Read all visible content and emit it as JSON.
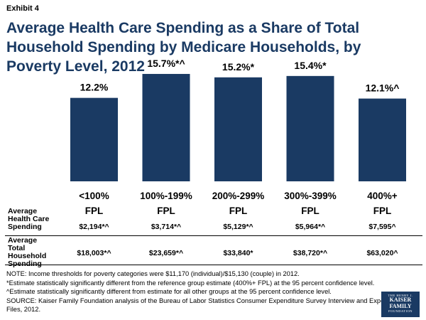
{
  "exhibit": "Exhibit 4",
  "title": "Average Health Care Spending as a Share of Total Household Spending by Medicare Households, by Poverty Level, 2012",
  "chart_data": {
    "type": "bar",
    "title": "Average Health Care Spending as a Share of Total Household Spending by Medicare Households, by Poverty Level, 2012",
    "categories": [
      [
        "<100%",
        "FPL"
      ],
      [
        "100%-199%",
        "FPL"
      ],
      [
        "200%-299%",
        "FPL"
      ],
      [
        "300%-399%",
        "FPL"
      ],
      [
        "400%+",
        "FPL"
      ]
    ],
    "values": [
      12.2,
      15.7,
      15.2,
      15.4,
      12.1
    ],
    "data_labels": [
      "12.2%",
      "15.7%*^",
      "15.2%*",
      "15.4%*",
      "12.1%^"
    ],
    "ylim": [
      0,
      16.5
    ],
    "bar_color": "#1a3a63",
    "xlabel": "",
    "ylabel": ""
  },
  "table": {
    "rows": [
      {
        "label_lines": [
          "Average",
          "Health Care",
          "Spending"
        ],
        "values": [
          "$2,194*^",
          "$3,714*^",
          "$5,129*^",
          "$5,964*^",
          "$7,595^"
        ]
      },
      {
        "label_lines": [
          "Average",
          "Total",
          "Household",
          "Spending"
        ],
        "values": [
          "$18,003*^",
          "$23,659*^",
          "$33,840*",
          "$38,720*^",
          "$63,020^"
        ]
      }
    ]
  },
  "notes": [
    "NOTE: Income thresholds for poverty categories were $11,170 (individual)/$15,130 (couple) in 2012.",
    "*Estimate statistically significantly different from the reference group estimate (400%+ FPL) at the 95 percent confidence level.",
    "^Estimate statistically significantly different from estimate for all other groups at the 95 percent confidence level.",
    "SOURCE: Kaiser Family Foundation analysis of the Bureau of Labor Statistics Consumer Expenditure Survey Interview and Expense",
    "Files, 2012."
  ],
  "logo": {
    "top": "THE HENRY J.",
    "line1": "KAISER",
    "line2": "FAMILY",
    "bottom": "FOUNDATION"
  }
}
